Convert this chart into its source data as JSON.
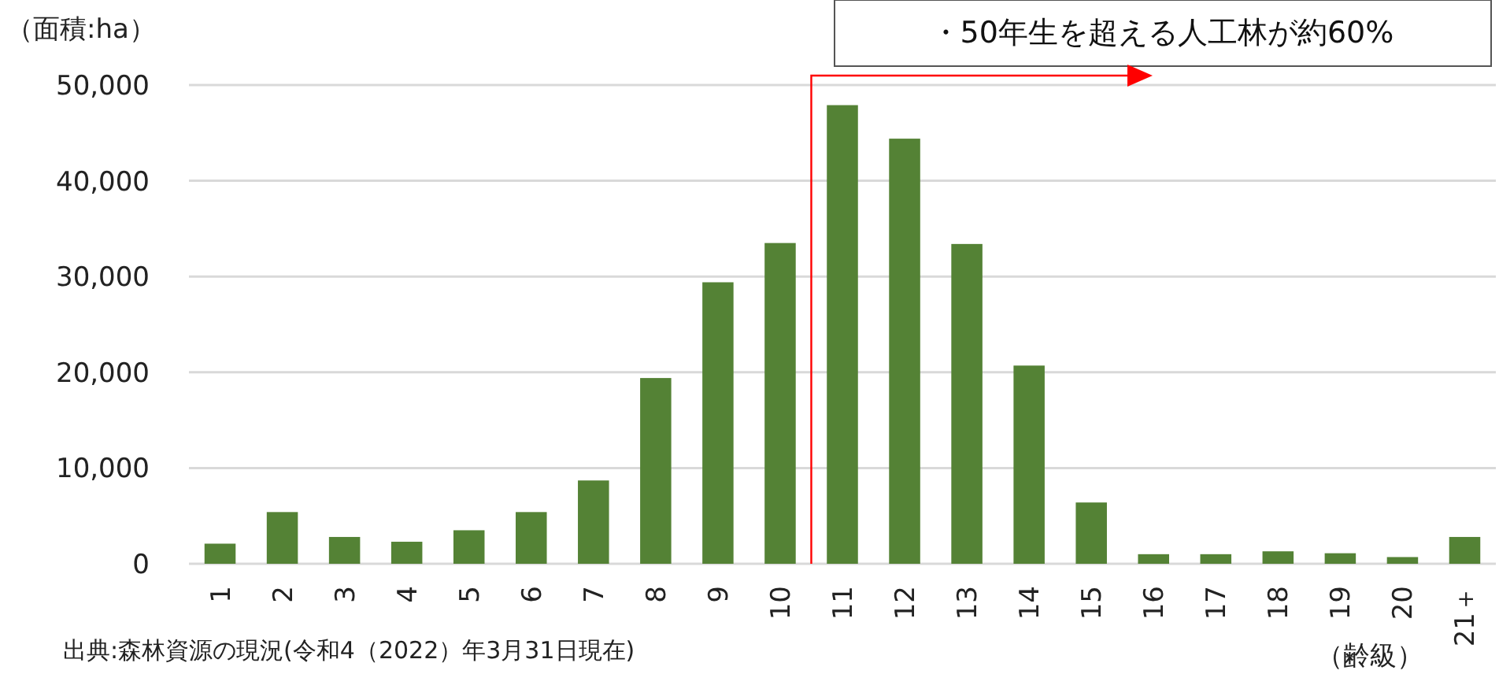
{
  "chart_data": {
    "type": "bar",
    "ylabel": "（面積:ha）",
    "xlabel": "（齢級）",
    "categories": [
      "1",
      "2",
      "3",
      "4",
      "5",
      "6",
      "7",
      "8",
      "9",
      "10",
      "11",
      "12",
      "13",
      "14",
      "15",
      "16",
      "17",
      "18",
      "19",
      "20",
      "21＋"
    ],
    "values": [
      2100,
      5400,
      2800,
      2300,
      3500,
      5400,
      8700,
      19400,
      29400,
      33500,
      47900,
      44400,
      33400,
      20700,
      6400,
      1000,
      1000,
      1300,
      1100,
      700,
      2800
    ],
    "color": "#548235",
    "ylim": [
      0,
      50000
    ],
    "yticks": [
      {
        "value": 0,
        "label": "0"
      },
      {
        "value": 10000,
        "label": "10,000"
      },
      {
        "value": 20000,
        "label": "20,000"
      },
      {
        "value": 30000,
        "label": "30,000"
      },
      {
        "value": 40000,
        "label": "40,000"
      },
      {
        "value": 50000,
        "label": "50,000"
      }
    ],
    "grid": "y",
    "annotations": [
      "・50年生を超える人工林が約60%",
      "出典:森林資源の現況(令和4（2022）年3月31日現在)"
    ]
  }
}
